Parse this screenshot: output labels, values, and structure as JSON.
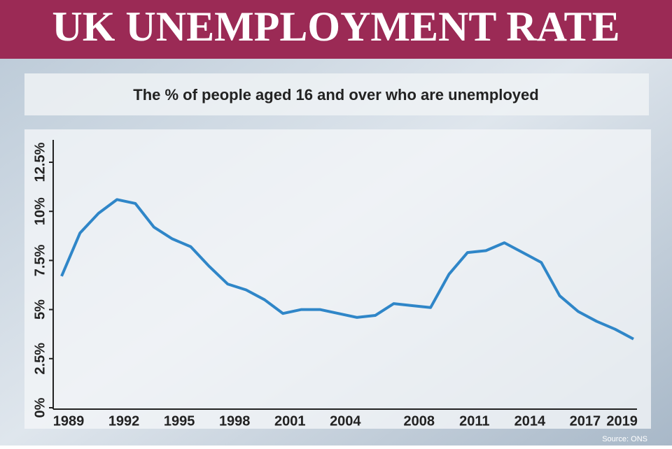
{
  "chart_data": {
    "type": "line",
    "title": "UK UNEMPLOYMENT RATE",
    "subtitle": "The % of people aged 16 and over who are unemployed",
    "source": "Source: ONS",
    "categories": [
      "1989",
      null,
      null,
      "1992",
      null,
      null,
      "1995",
      null,
      null,
      "1998",
      null,
      null,
      "2001",
      null,
      null,
      "2004",
      null,
      null,
      null,
      "2008",
      null,
      null,
      "2011",
      null,
      null,
      "2014",
      null,
      null,
      "2017",
      null,
      "2019",
      null
    ],
    "series": [
      {
        "color": "#2f86c8",
        "values": [
          6.7,
          8.9,
          9.9,
          10.6,
          10.4,
          9.2,
          8.6,
          8.2,
          7.2,
          6.3,
          6.0,
          5.5,
          4.8,
          5.0,
          5.0,
          4.8,
          4.6,
          4.7,
          5.3,
          5.2,
          5.1,
          6.8,
          7.9,
          8.0,
          8.4,
          7.9,
          7.4,
          5.7,
          4.9,
          4.4,
          4.0,
          3.5
        ]
      }
    ],
    "ylim": [
      0,
      12.5
    ],
    "yticks": [
      {
        "value": 0,
        "label": "0%"
      },
      {
        "value": 2.5,
        "label": "2.5%"
      },
      {
        "value": 5,
        "label": "5%"
      },
      {
        "value": 7.5,
        "label": "7.5%"
      },
      {
        "value": 10,
        "label": "10%"
      },
      {
        "value": 12.5,
        "label": "12.5%"
      }
    ],
    "grid": false
  }
}
